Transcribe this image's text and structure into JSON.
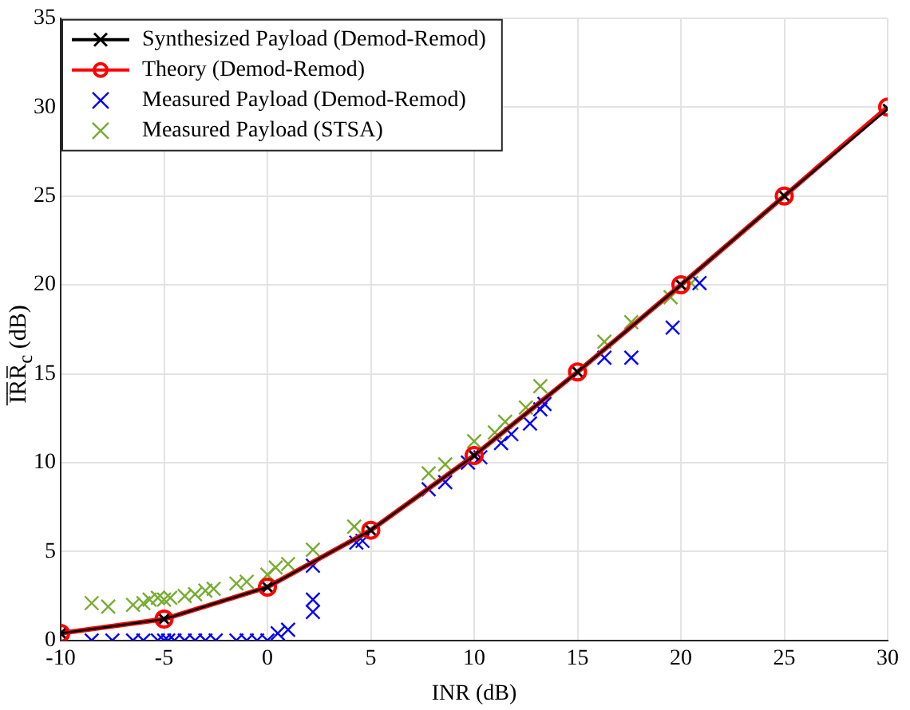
{
  "chart_data": {
    "type": "line",
    "xlabel": "INR (dB)",
    "ylabel": "I̅R̅R̅$_{c}$ (dB)",
    "xlim": [
      -10,
      30
    ],
    "ylim": [
      0,
      35
    ],
    "xticks": [
      -10,
      -5,
      0,
      5,
      10,
      15,
      20,
      25,
      30
    ],
    "yticks": [
      0,
      5,
      10,
      15,
      20,
      25,
      30,
      35
    ],
    "grid": true,
    "legend": "top left",
    "line_style": "solid",
    "series": [
      {
        "name": "Synthesized Payload (Demod-Remod)",
        "type": "line",
        "marker": "cross",
        "color": "#000000",
        "x": [
          -10,
          -5,
          0,
          5,
          10,
          15,
          20,
          25,
          30
        ],
        "values": [
          0.4,
          1.2,
          3.0,
          6.2,
          10.4,
          15.1,
          20.0,
          25.0,
          29.9
        ]
      },
      {
        "name": "Theory (Demod-Remod)",
        "type": "line",
        "marker": "circle",
        "color": "#ff0000",
        "x": [
          -10,
          -5,
          0,
          5,
          10,
          15,
          20,
          25,
          30
        ],
        "values": [
          0.4,
          1.2,
          3.0,
          6.2,
          10.4,
          15.1,
          20.0,
          25.0,
          30.0
        ]
      },
      {
        "name": "Measured Payload (Demod-Remod)",
        "type": "scatter",
        "marker": "cross",
        "color": "#0000ff",
        "x": [
          -8.5,
          -7.5,
          -6.5,
          -6,
          -5.3,
          -5,
          -4.8,
          -4.5,
          -4,
          -3.5,
          -3,
          -2.5,
          -1.5,
          -1,
          -0.5,
          0,
          0.5,
          1,
          2.2,
          2.2,
          2.2,
          4.3,
          4.6,
          7.8,
          8.6,
          9.7,
          10.3,
          11.3,
          11.8,
          12.7,
          13.2,
          13.4,
          16.3,
          17.6,
          19.6,
          20.9
        ],
        "values": [
          0,
          0,
          0,
          0,
          0,
          0,
          0,
          0,
          0,
          0,
          0,
          0,
          0,
          0,
          0,
          0,
          0.4,
          0.6,
          4.2,
          2.3,
          1.6,
          5.5,
          5.6,
          8.5,
          8.9,
          10.0,
          10.3,
          11.1,
          11.6,
          12.2,
          13.0,
          13.3,
          15.9,
          15.9,
          17.6,
          20.1
        ]
      },
      {
        "name": "Measured Payload (STSA)",
        "type": "scatter",
        "marker": "cross",
        "color": "#77ac30",
        "x": [
          -8.5,
          -7.7,
          -6.5,
          -6,
          -5.7,
          -5.3,
          -5,
          -4.7,
          -4,
          -3.5,
          -3,
          -2.6,
          -1.5,
          -1,
          0,
          0.4,
          1,
          2.2,
          4.2,
          7.8,
          8.6,
          10,
          11,
          11.5,
          12.5,
          13.2,
          16.3,
          17.6,
          19.5,
          20.5
        ],
        "values": [
          2.1,
          1.9,
          2.0,
          2.1,
          2.3,
          2.4,
          2.3,
          2.4,
          2.5,
          2.6,
          2.8,
          2.9,
          3.2,
          3.3,
          3.7,
          4.1,
          4.3,
          5.1,
          6.4,
          9.4,
          9.9,
          11.2,
          11.7,
          12.3,
          13.1,
          14.3,
          16.8,
          17.9,
          19.3,
          20.1
        ]
      }
    ]
  }
}
